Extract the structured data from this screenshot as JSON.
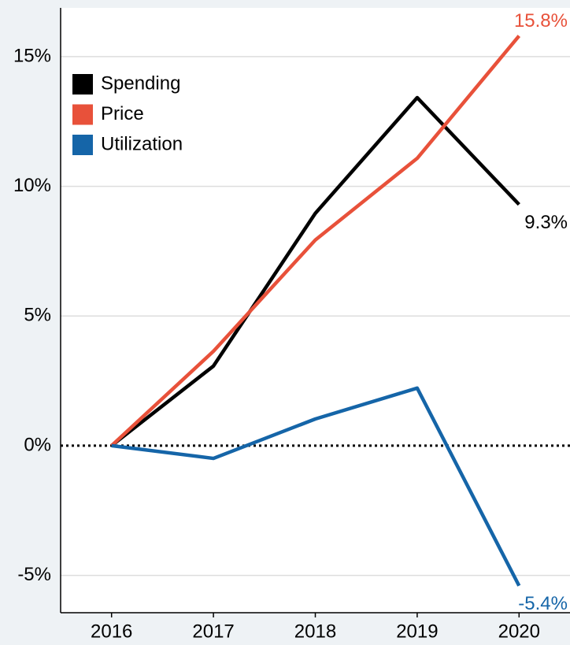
{
  "chart_data": {
    "type": "line",
    "x": [
      2016,
      2017,
      2018,
      2019,
      2020
    ],
    "series": [
      {
        "name": "Spending",
        "color": "#000000",
        "values": [
          0,
          3.07,
          8.96,
          13.42,
          9.3
        ],
        "value_labels": [
          null,
          null,
          null,
          null,
          "9.3%"
        ]
      },
      {
        "name": "Price",
        "color": "#e8513a",
        "values": [
          0,
          3.64,
          7.93,
          11.08,
          15.8
        ],
        "value_labels": [
          null,
          null,
          null,
          null,
          "15.8%"
        ]
      },
      {
        "name": "Utilization",
        "color": "#1565a8",
        "values": [
          0,
          -0.49,
          1.03,
          2.22,
          -5.4
        ],
        "value_labels": [
          null,
          null,
          null,
          null,
          "-5.4%"
        ]
      }
    ],
    "xlim": [
      2015.5,
      2020.5
    ],
    "xticks": [
      2016,
      2017,
      2018,
      2019,
      2020
    ],
    "ylim": [
      -6.44,
      16.88
    ],
    "yticks": [
      {
        "value": -5,
        "label": "-5%"
      },
      {
        "value": 0,
        "label": "0%"
      },
      {
        "value": 5,
        "label": "5%"
      },
      {
        "value": 10,
        "label": "10%"
      },
      {
        "value": 15,
        "label": "15%"
      }
    ],
    "grid": true,
    "legend": "upper left"
  }
}
